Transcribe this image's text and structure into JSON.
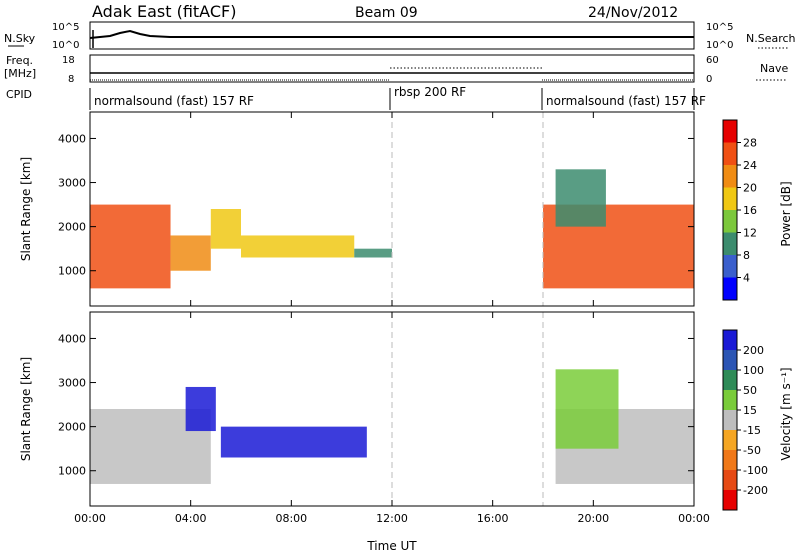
{
  "header": {
    "station": "Adak East (fitACF)",
    "beam": "Beam 09",
    "date": "24/Nov/2012"
  },
  "strip_labels": {
    "nsky": "N.Sky",
    "nsky_ticks": [
      "10^5",
      "10^0"
    ],
    "nsearch": "N.Search",
    "nsearch_ticks": [
      "10^5",
      "10^0"
    ],
    "freq_line1": "Freq.",
    "freq_line2": "[MHz]",
    "freq_ticks": [
      "18",
      "8"
    ],
    "nave": "Nave",
    "nave_ticks": [
      "60",
      "0"
    ],
    "cpid": "CPID"
  },
  "cpid_segments": [
    {
      "label": "normalsound (fast) 157 RF",
      "start": 0,
      "end": 12
    },
    {
      "label": "rbsp 200 RF",
      "start": 12,
      "end": 18
    },
    {
      "label": "normalsound (fast) 157 RF",
      "start": 18,
      "end": 24
    }
  ],
  "colors": {
    "power": [
      "#0000ff",
      "#3a5fcd",
      "#3c8c6e",
      "#7cc83c",
      "#f0c814",
      "#f08c14",
      "#f05014",
      "#e60000"
    ],
    "velocity": [
      "#1a1ad6",
      "#2b55b4",
      "#2e8b57",
      "#7acc3a",
      "#bebebe",
      "#f5a623",
      "#f07818",
      "#e64a14",
      "#e60000"
    ]
  },
  "chart_data": [
    {
      "type": "heatmap",
      "quantity": "Power",
      "ylabel": "Slant Range [km]",
      "xlim": [
        0,
        24
      ],
      "ylim": [
        200,
        4600
      ],
      "yticks": [
        1000,
        2000,
        3000,
        4000
      ],
      "colorbar": {
        "label": "Power [dB]",
        "tick_labels": [
          "28",
          "24",
          "20",
          "16",
          "12",
          "8",
          "4"
        ],
        "range": [
          0,
          32
        ]
      },
      "regions": [
        {
          "t0": 0.0,
          "t1": 3.2,
          "r0": 600,
          "r1": 2500,
          "v": 26
        },
        {
          "t0": 3.2,
          "t1": 4.8,
          "r0": 1000,
          "r1": 1800,
          "v": 22
        },
        {
          "t0": 4.8,
          "t1": 6.0,
          "r0": 1500,
          "r1": 2400,
          "v": 18
        },
        {
          "t0": 6.0,
          "t1": 10.5,
          "r0": 1300,
          "r1": 1800,
          "v": 16
        },
        {
          "t0": 10.5,
          "t1": 12.0,
          "r0": 1300,
          "r1": 1500,
          "v": 8
        },
        {
          "t0": 18.0,
          "t1": 24.0,
          "r0": 600,
          "r1": 2500,
          "v": 27
        },
        {
          "t0": 18.5,
          "t1": 20.5,
          "r0": 2000,
          "r1": 3300,
          "v": 10
        }
      ]
    },
    {
      "type": "heatmap",
      "quantity": "Velocity",
      "ylabel": "Slant Range [km]",
      "xlim": [
        0,
        24
      ],
      "ylim": [
        200,
        4600
      ],
      "yticks": [
        1000,
        2000,
        3000,
        4000
      ],
      "xticks": [
        "00:00",
        "04:00",
        "08:00",
        "12:00",
        "16:00",
        "20:00",
        "00:00"
      ],
      "xlabel": "Time UT",
      "colorbar": {
        "label": "Velocity [m s⁻¹]",
        "tick_labels": [
          "200",
          "100",
          "50",
          "15",
          "-15",
          "-50",
          "-100",
          "-200"
        ],
        "range": [
          -250,
          250
        ]
      },
      "regions": [
        {
          "t0": 0.0,
          "t1": 4.8,
          "r0": 700,
          "r1": 2400,
          "v": 0
        },
        {
          "t0": 3.8,
          "t1": 5.0,
          "r0": 1900,
          "r1": 2900,
          "v": 200
        },
        {
          "t0": 5.2,
          "t1": 11.0,
          "r0": 1300,
          "r1": 2000,
          "v": 220
        },
        {
          "t0": 18.5,
          "t1": 24.0,
          "r0": 700,
          "r1": 2400,
          "v": 0
        },
        {
          "t0": 18.5,
          "t1": 21.0,
          "r0": 1500,
          "r1": 3300,
          "v": 40
        }
      ]
    }
  ]
}
